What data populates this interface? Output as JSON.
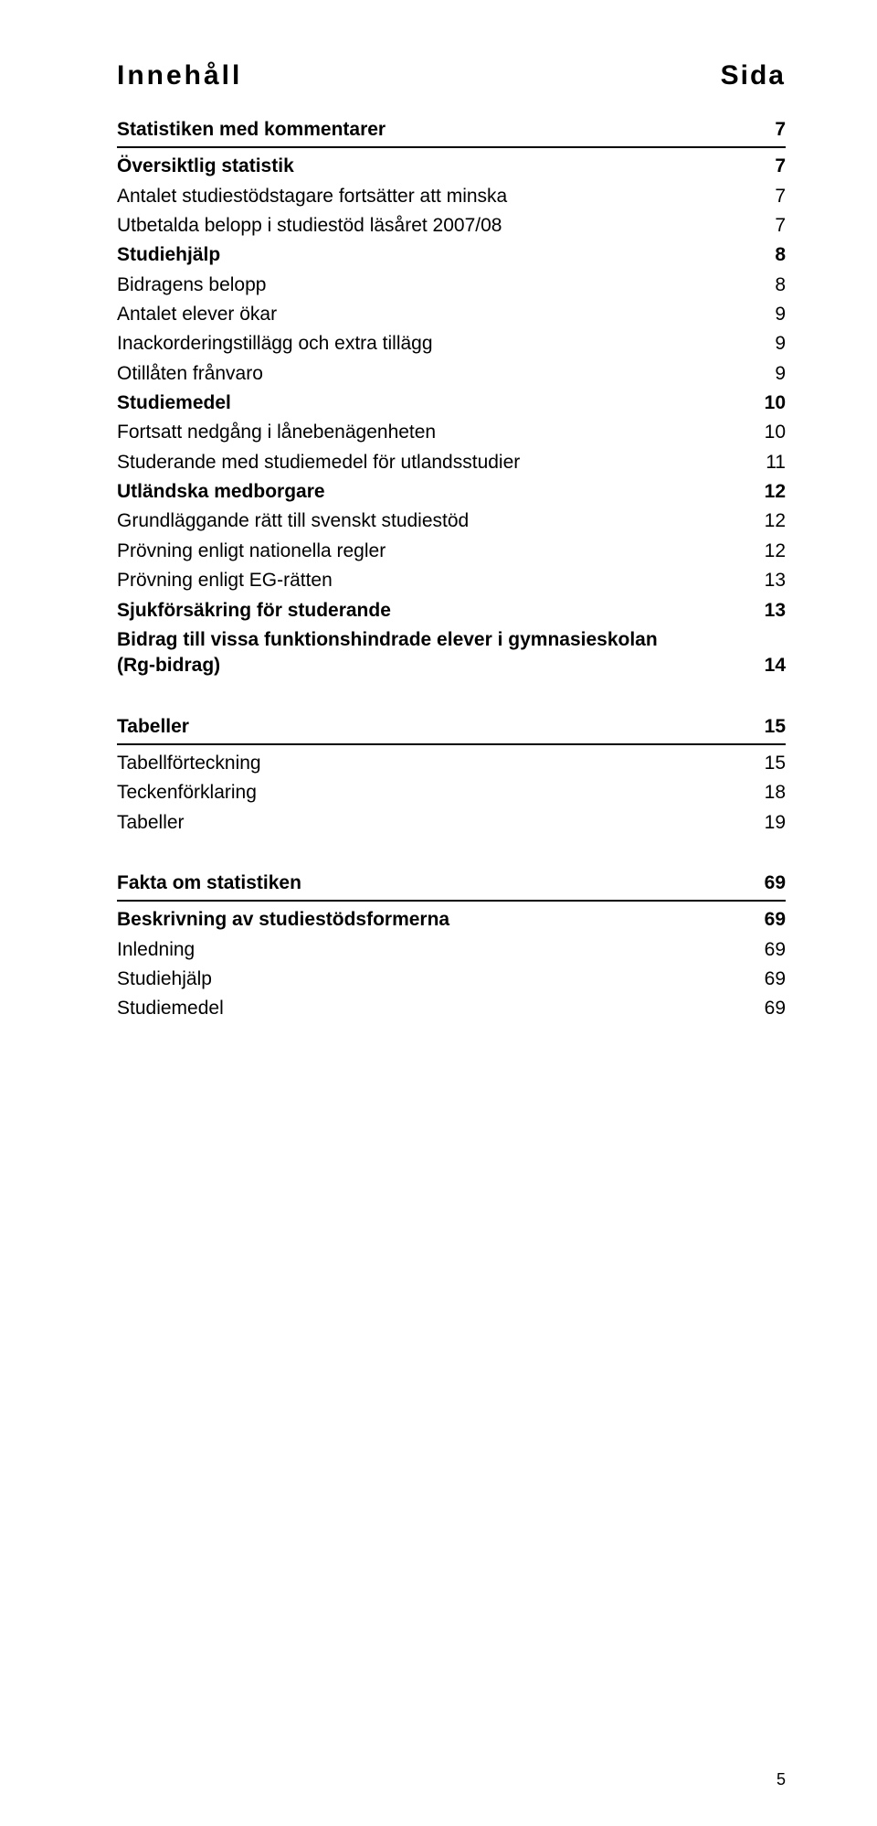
{
  "header": {
    "left": "Innehåll",
    "right": "Sida"
  },
  "sections": [
    {
      "title": {
        "label": "Statistiken med kommentarer",
        "page": "7"
      },
      "ruleAfterTitle": true,
      "items": [
        {
          "label": "Översiktlig statistik",
          "page": "7",
          "bold": true
        },
        {
          "label": "Antalet studiestödstagare fortsätter att minska",
          "page": "7"
        },
        {
          "label": "Utbetalda belopp i studiestöd läsåret 2007/08",
          "page": "7"
        },
        {
          "label": "Studiehjälp",
          "page": "8",
          "bold": true
        },
        {
          "label": "Bidragens belopp",
          "page": "8"
        },
        {
          "label": "Antalet elever ökar",
          "page": "9"
        },
        {
          "label": "Inackorderingstillägg och extra tillägg",
          "page": "9"
        },
        {
          "label": "Otillåten frånvaro",
          "page": "9"
        },
        {
          "label": "Studiemedel",
          "page": "10",
          "bold": true
        },
        {
          "label": "Fortsatt nedgång i lånebenägenheten",
          "page": "10"
        },
        {
          "label": "Studerande med studiemedel för utlandsstudier",
          "page": "11"
        },
        {
          "label": "Utländska medborgare",
          "page": "12",
          "bold": true
        },
        {
          "label": "Grundläggande rätt till svenskt studiestöd",
          "page": "12"
        },
        {
          "label": "Prövning enligt nationella regler",
          "page": "12"
        },
        {
          "label": "Prövning enligt EG-rätten",
          "page": "13"
        },
        {
          "label": "Sjukförsäkring för studerande",
          "page": "13",
          "bold": true
        },
        {
          "label": "Bidrag till vissa funktionshindrade elever i gymnasieskolan",
          "label2": "(Rg-bidrag)",
          "page": "14",
          "bold": true,
          "multiline": true
        }
      ]
    },
    {
      "title": {
        "label": "Tabeller",
        "page": "15"
      },
      "ruleAfterTitle": true,
      "items": [
        {
          "label": "Tabellförteckning",
          "page": "15"
        },
        {
          "label": "Teckenförklaring",
          "page": "18"
        },
        {
          "label": "Tabeller",
          "page": "19"
        }
      ]
    },
    {
      "title": {
        "label": "Fakta om statistiken",
        "page": "69"
      },
      "ruleAfterTitle": true,
      "items": [
        {
          "label": "Beskrivning av studiestödsformerna",
          "page": "69",
          "bold": true
        },
        {
          "label": "Inledning",
          "page": "69"
        },
        {
          "label": "Studiehjälp",
          "page": "69"
        },
        {
          "label": "Studiemedel",
          "page": "69"
        }
      ]
    }
  ],
  "footer": {
    "pageNumber": "5"
  }
}
